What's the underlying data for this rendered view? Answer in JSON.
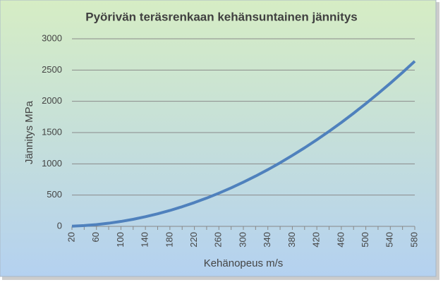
{
  "chart_data": {
    "type": "line",
    "title": "Pyörivän teräsrenkaan kehänsuntainen jännitys",
    "x_label": "Kehänopeus m/s",
    "y_label": "Jännitys MPa",
    "categories": [
      20,
      null,
      60,
      null,
      100,
      null,
      140,
      null,
      180,
      null,
      220,
      null,
      260,
      null,
      300,
      null,
      340,
      null,
      380,
      null,
      420,
      null,
      460,
      null,
      500,
      null,
      540,
      null,
      580
    ],
    "series": [
      {
        "color": "#4f81bd",
        "values": [
          3.1,
          12.6,
          28.3,
          50.2,
          78.5,
          113,
          154,
          201,
          254,
          314,
          380,
          452,
          531,
          615,
          707,
          804,
          907,
          1017,
          1134,
          1256,
          1385,
          1520,
          1661,
          1809,
          1963,
          2123,
          2289,
          2462,
          2641
        ]
      }
    ],
    "ylim": [
      0,
      3000
    ],
    "yticks": [
      0,
      500,
      1000,
      1500,
      2000,
      2500,
      3000
    ],
    "grid": true
  }
}
